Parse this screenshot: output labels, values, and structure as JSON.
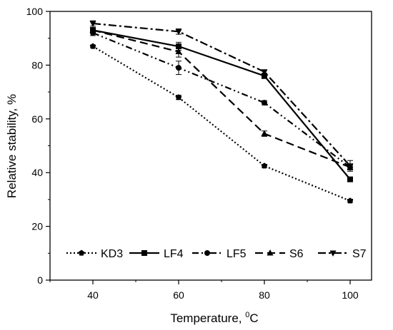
{
  "chart_data": {
    "type": "line",
    "x": [
      40,
      60,
      80,
      100
    ],
    "xlim": [
      30,
      105
    ],
    "ylim": [
      0,
      100
    ],
    "xticks": [
      40,
      60,
      80,
      100
    ],
    "yticks": [
      0,
      20,
      40,
      60,
      80,
      100
    ],
    "xlabel_main": "Temperature, ",
    "xlabel_sup": "0",
    "xlabel_end": "C",
    "ylabel": "Relative stability, %",
    "grid": false,
    "legend_position": "bottom",
    "series": [
      {
        "name": "KD3",
        "values": [
          87,
          68,
          42.5,
          29.5
        ],
        "errors": [
          0.5,
          0.8,
          0.6,
          0.6
        ],
        "dash": "dot",
        "marker": "pentagon"
      },
      {
        "name": "LF4",
        "values": [
          93,
          87,
          76,
          37.5
        ],
        "errors": [
          1.0,
          1.5,
          1.0,
          0.8
        ],
        "dash": "solid",
        "marker": "square"
      },
      {
        "name": "LF5",
        "values": [
          92,
          79,
          66,
          42
        ],
        "errors": [
          1.0,
          2.5,
          0.8,
          0.8
        ],
        "dash": "dashdotdot",
        "marker": "circle"
      },
      {
        "name": "S6",
        "values": [
          93,
          85,
          54.5,
          42
        ],
        "errors": [
          1.0,
          2.0,
          1.0,
          1.0
        ],
        "dash": "dash",
        "marker": "triangle-up"
      },
      {
        "name": "S7",
        "values": [
          95.5,
          92.5,
          77.5,
          42.5
        ],
        "errors": [
          1.0,
          1.0,
          0.8,
          2.0
        ],
        "dash": "dashdot",
        "marker": "triangle-down"
      }
    ]
  }
}
